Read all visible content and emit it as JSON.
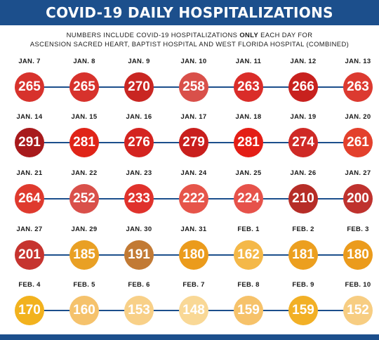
{
  "title": "COVID-19 DAILY HOSPITALIZATIONS",
  "subtitle": {
    "line1_pre": "NUMBERS INCLUDE COVID-19 HOSPITALIZATIONS ",
    "line1_bold": "ONLY",
    "line1_post": " EACH DAY FOR",
    "line2": "ASCENSION SACRED HEART, BAPTIST HOSPITAL AND WEST FLORIDA HOSPITAL (COMBINED)"
  },
  "colors": {
    "navy": "#1c4f8c"
  },
  "rows": [
    [
      {
        "date": "JAN. 7",
        "value": "265",
        "color": "#d7322c"
      },
      {
        "date": "JAN. 8",
        "value": "265",
        "color": "#d7322c"
      },
      {
        "date": "JAN. 9",
        "value": "270",
        "color": "#c92622"
      },
      {
        "date": "JAN. 10",
        "value": "258",
        "color": "#d9504a"
      },
      {
        "date": "JAN. 11",
        "value": "263",
        "color": "#da2d29"
      },
      {
        "date": "JAN. 12",
        "value": "266",
        "color": "#c8211e"
      },
      {
        "date": "JAN. 13",
        "value": "263",
        "color": "#dc3a30"
      }
    ],
    [
      {
        "date": "JAN. 14",
        "value": "291",
        "color": "#a81a1c"
      },
      {
        "date": "JAN. 15",
        "value": "281",
        "color": "#e02418"
      },
      {
        "date": "JAN. 16",
        "value": "276",
        "color": "#d42420"
      },
      {
        "date": "JAN. 17",
        "value": "279",
        "color": "#c91f1d"
      },
      {
        "date": "JAN. 18",
        "value": "281",
        "color": "#e41e16"
      },
      {
        "date": "JAN. 19",
        "value": "274",
        "color": "#cf2a26"
      },
      {
        "date": "JAN. 20",
        "value": "261",
        "color": "#e3402c"
      }
    ],
    [
      {
        "date": "JAN. 21",
        "value": "264",
        "color": "#df3a2e"
      },
      {
        "date": "JAN. 22",
        "value": "252",
        "color": "#d9504a"
      },
      {
        "date": "JAN. 23",
        "value": "233",
        "color": "#e0322c"
      },
      {
        "date": "JAN. 24",
        "value": "222",
        "color": "#e6554a"
      },
      {
        "date": "JAN. 25",
        "value": "224",
        "color": "#e6524a"
      },
      {
        "date": "JAN. 26",
        "value": "210",
        "color": "#b62d27"
      },
      {
        "date": "JAN. 27",
        "value": "200",
        "color": "#bf322e"
      }
    ],
    [
      {
        "date": "JAN. 27",
        "value": "201",
        "color": "#c6342f"
      },
      {
        "date": "JAN. 29",
        "value": "185",
        "color": "#e9a024"
      },
      {
        "date": "JAN. 30",
        "value": "191",
        "color": "#c27a34"
      },
      {
        "date": "JAN. 31",
        "value": "180",
        "color": "#eb9b1c"
      },
      {
        "date": "FEB. 1",
        "value": "162",
        "color": "#f4b848"
      },
      {
        "date": "FEB. 2",
        "value": "181",
        "color": "#ec9f1f"
      },
      {
        "date": "FEB. 3",
        "value": "180",
        "color": "#eb9b1c"
      }
    ],
    [
      {
        "date": "FEB. 4",
        "value": "170",
        "color": "#f2b21e"
      },
      {
        "date": "FEB. 5",
        "value": "160",
        "color": "#f5c26c"
      },
      {
        "date": "FEB. 6",
        "value": "153",
        "color": "#f8d088"
      },
      {
        "date": "FEB. 7",
        "value": "148",
        "color": "#f9d896"
      },
      {
        "date": "FEB. 8",
        "value": "159",
        "color": "#f6c26a"
      },
      {
        "date": "FEB. 9",
        "value": "159",
        "color": "#f2b026"
      },
      {
        "date": "FEB. 10",
        "value": "152",
        "color": "#f7cd82"
      }
    ]
  ]
}
